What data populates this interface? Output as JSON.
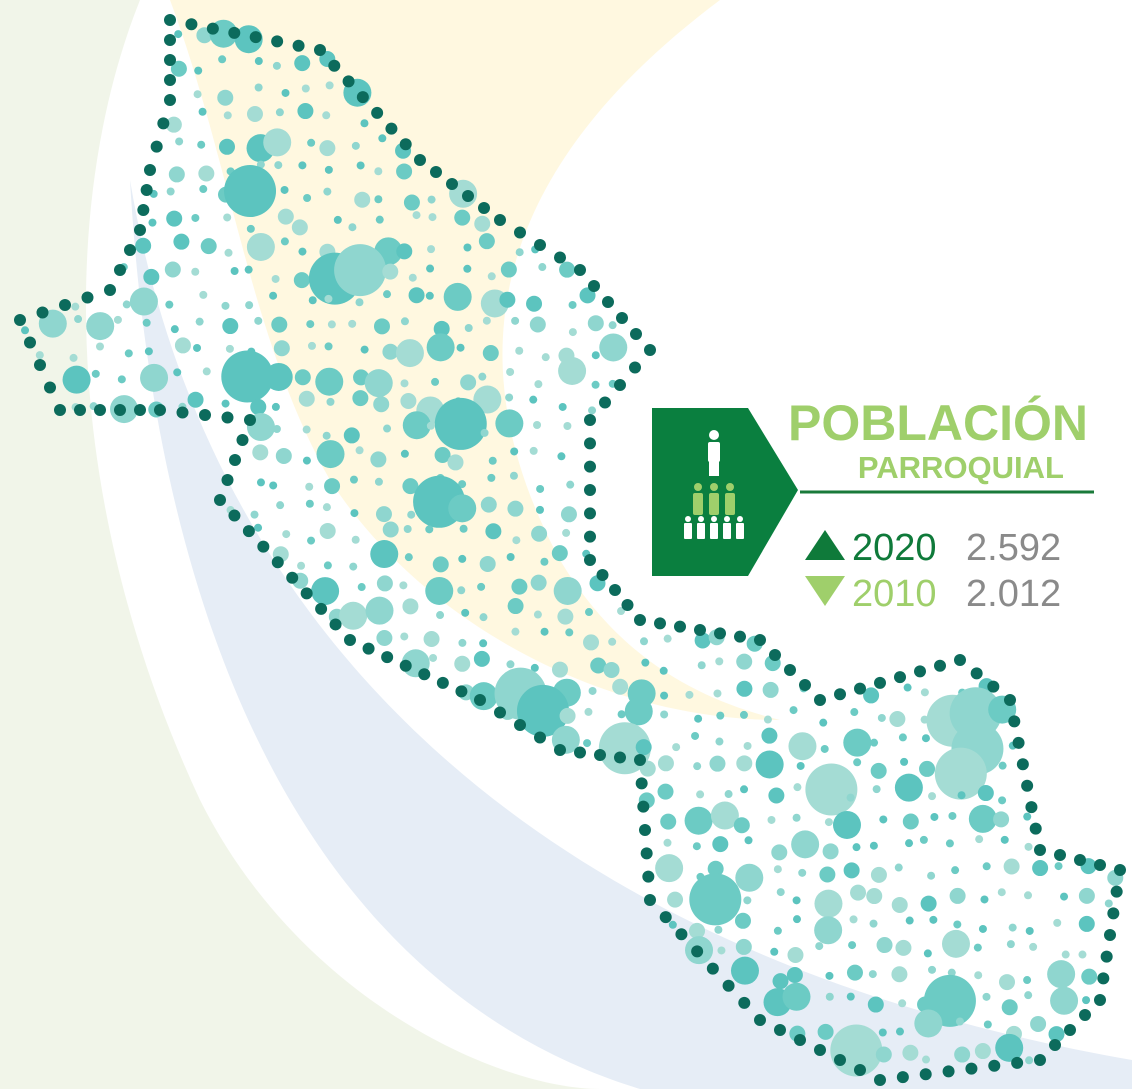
{
  "panel": {
    "title": "POBLACIÓN",
    "subtitle": "PARROQUIAL",
    "rows": [
      {
        "year": "2020",
        "value": "2.592"
      },
      {
        "year": "2010",
        "value": "2.012"
      }
    ]
  }
}
